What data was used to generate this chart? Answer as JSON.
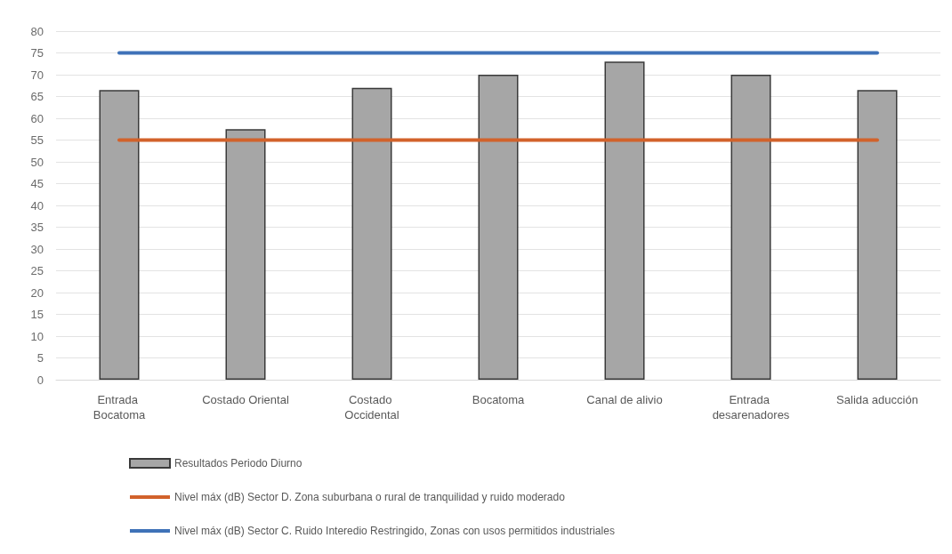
{
  "chart_data": {
    "type": "bar",
    "categories": [
      "Entrada Bocatoma",
      "Costado Oriental",
      "Costado Occidental",
      "Bocatoma",
      "Canal de alivio",
      "Entrada desarenadores",
      "Salida aducción"
    ],
    "series": [
      {
        "name": "Resultados Periodo Diurno",
        "color": "#a6a6a6",
        "values": [
          66.5,
          57.5,
          67,
          70,
          73,
          70,
          66.5
        ]
      },
      {
        "name": "Nivel máx (dB) Sector D. Zona suburbana o rural de tranquilidad y ruido moderado",
        "type": "line",
        "color": "#d2622b",
        "values": [
          55,
          55,
          55,
          55,
          55,
          55,
          55
        ]
      },
      {
        "name": "Nivel máx (dB) Sector C. Ruido Interedio Restringido, Zonas con usos permitidos industriales",
        "type": "line",
        "color": "#3f72b8",
        "values": [
          75,
          75,
          75,
          75,
          75,
          75,
          75
        ]
      }
    ],
    "ylim": [
      0,
      80
    ],
    "yticks": [
      0,
      5,
      10,
      15,
      20,
      25,
      30,
      35,
      40,
      45,
      50,
      55,
      60,
      65,
      70,
      75,
      80
    ],
    "grid": "y",
    "legend": "bottom",
    "marker": "none",
    "line_style": "solid"
  }
}
